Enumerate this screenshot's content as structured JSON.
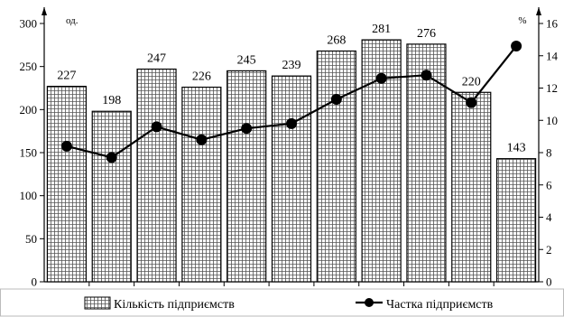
{
  "chart_data": {
    "type": "bar",
    "categories": [
      "",
      "",
      "",
      "",
      "",
      "",
      "",
      "",
      "",
      "",
      ""
    ],
    "series": [
      {
        "name": "Кількість підприємств",
        "type": "bar",
        "axis": "left",
        "values": [
          227,
          198,
          247,
          226,
          245,
          239,
          268,
          281,
          276,
          220,
          143
        ]
      },
      {
        "name": "Частка підприємств",
        "type": "line",
        "axis": "right",
        "values": [
          8.4,
          7.7,
          9.6,
          8.8,
          9.5,
          9.8,
          11.3,
          12.6,
          12.8,
          11.1,
          14.6
        ]
      }
    ],
    "left_axis": {
      "unit": "од.",
      "ylim": [
        0,
        300
      ],
      "ticks": [
        0,
        50,
        100,
        150,
        200,
        250,
        300
      ]
    },
    "right_axis": {
      "unit": "%",
      "ylim": [
        0,
        16
      ],
      "ticks": [
        0,
        2,
        4,
        6,
        8,
        10,
        12,
        14,
        16
      ]
    },
    "grid": false,
    "legend_position": "bottom",
    "colors": {
      "bar_fill": "#ffffff",
      "bar_hatch": "#555555",
      "line": "#000000",
      "marker": "#000000"
    }
  }
}
